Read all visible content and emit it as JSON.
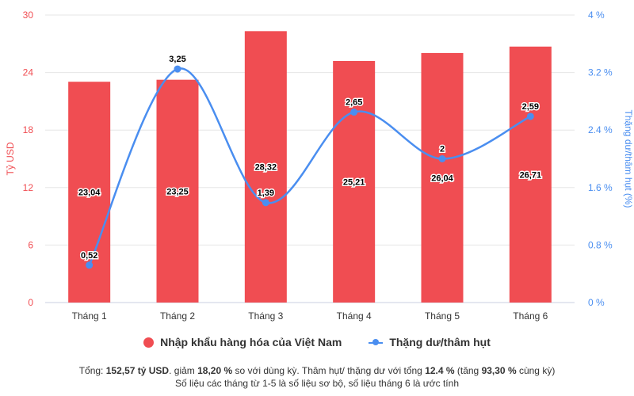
{
  "chart_data": {
    "type": "bar+line",
    "categories": [
      "Tháng 1",
      "Tháng 2",
      "Tháng 3",
      "Tháng 4",
      "Tháng 5",
      "Tháng 6"
    ],
    "series": [
      {
        "name": "Nhập khẩu hàng hóa của Việt Nam",
        "type": "bar",
        "axis": "left",
        "values": [
          23.04,
          23.25,
          28.32,
          25.21,
          26.04,
          26.71
        ],
        "labels": [
          "23,04",
          "23,25",
          "28,32",
          "25,21",
          "26,04",
          "26,71"
        ],
        "color": "#f04d52"
      },
      {
        "name": "Thặng dư/thâm hụt",
        "type": "line",
        "axis": "right",
        "values": [
          0.52,
          3.25,
          1.39,
          2.65,
          2.0,
          2.59
        ],
        "labels": [
          "0,52",
          "3,25",
          "1,39",
          "2,65",
          "2",
          "2,59"
        ],
        "color": "#4a8ef0"
      }
    ],
    "y_left": {
      "label": "Tỷ USD",
      "min": 0,
      "max": 30,
      "ticks": [
        "0",
        "6",
        "12",
        "18",
        "24",
        "30"
      ],
      "color": "#f04d52"
    },
    "y_right": {
      "label": "Thặng dư/thâm hụt (%)",
      "min": 0,
      "max": 4,
      "ticks": [
        "0 %",
        "0.8 %",
        "1.6 %",
        "2.4 %",
        "3.2 %",
        "4 %"
      ],
      "color": "#4a8ef0"
    },
    "grid": true,
    "legend": "bottom"
  },
  "footer": {
    "line1": {
      "t1": "Tổng: ",
      "b1": "152,57 tỷ USD",
      "t2": ". giảm ",
      "b2": "18,20 %",
      "t3": " so với dùng kỳ. Thâm hụt/ thặng dư với tổng ",
      "b3": "12.4 %",
      "t4": " (tăng ",
      "b4": "93,30 %",
      "t5": " cùng kỳ)"
    },
    "line2": "Số liệu các tháng từ 1-5 là số liệu sơ bộ, số liệu tháng 6 là ước tính"
  }
}
